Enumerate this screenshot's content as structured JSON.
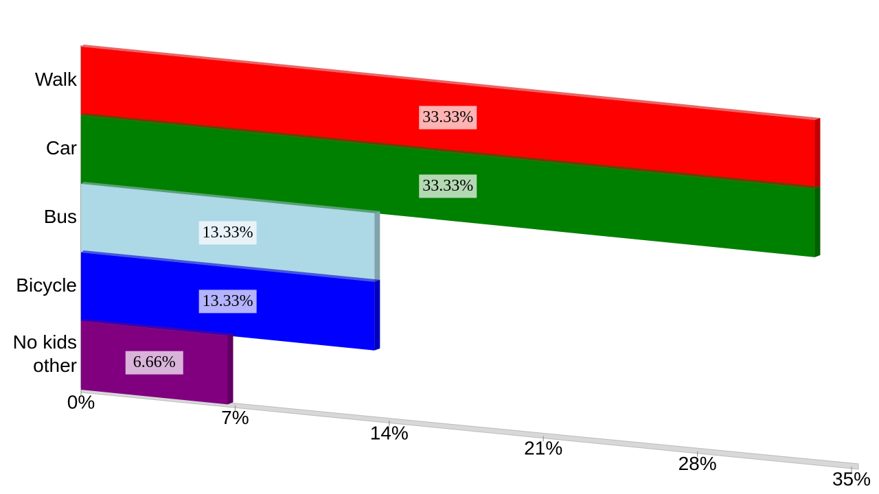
{
  "chart_data": {
    "type": "bar",
    "orientation": "horizontal",
    "categories": [
      "Walk",
      "Car",
      "Bus",
      "Bicycle",
      "No kids\nother"
    ],
    "values": [
      33.33,
      33.33,
      13.33,
      13.33,
      6.66
    ],
    "value_labels": [
      "33.33%",
      "33.33%",
      "13.33%",
      "13.33%",
      "6.66%"
    ],
    "colors": [
      "#ff0000",
      "#008000",
      "#add8e6",
      "#0000ff",
      "#800080"
    ],
    "xlim": [
      0,
      35
    ],
    "xticks": [
      {
        "value": 0,
        "label": "0%"
      },
      {
        "value": 7,
        "label": "7%"
      },
      {
        "value": 14,
        "label": "14%"
      },
      {
        "value": 21,
        "label": "21%"
      },
      {
        "value": 28,
        "label": "28%"
      },
      {
        "value": 35,
        "label": "35%"
      }
    ]
  }
}
